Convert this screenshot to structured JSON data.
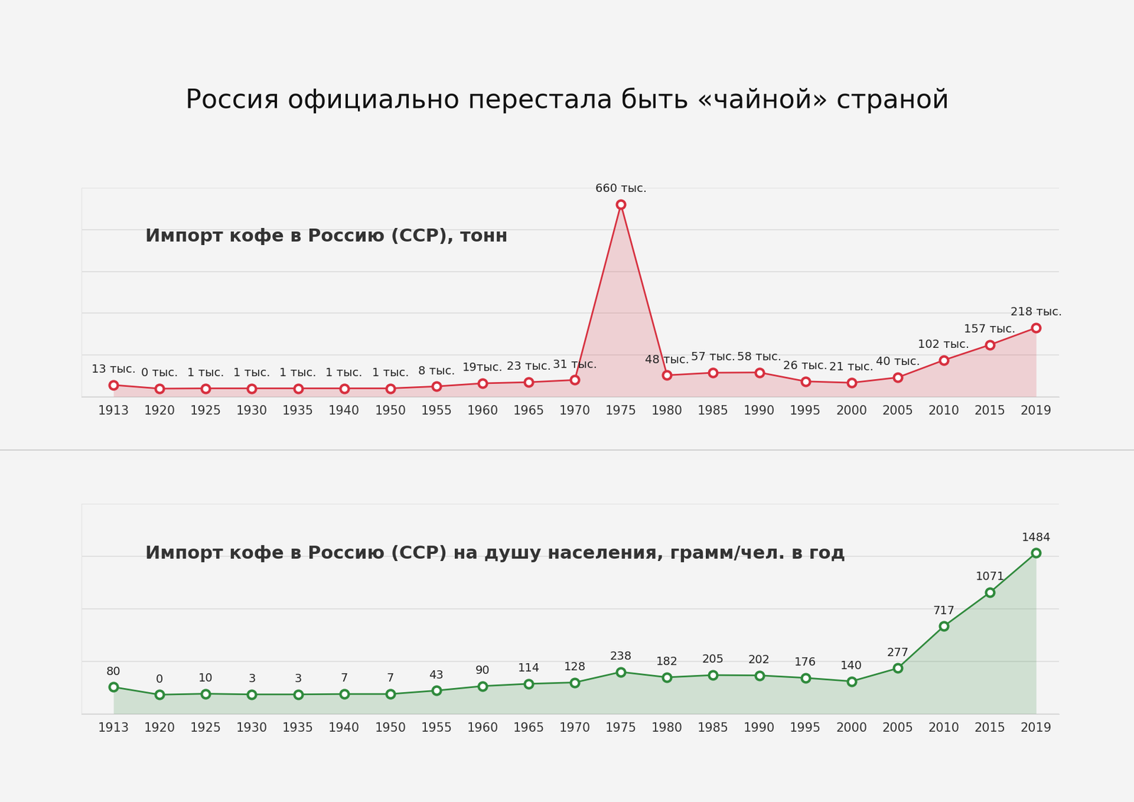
{
  "title": "Россия официально перестала быть «чайной» страной",
  "chart_data": [
    {
      "type": "line",
      "title": "Импорт кофе в Россию (ССР), тонн",
      "categories": [
        "1913",
        "1920",
        "1925",
        "1930",
        "1935",
        "1940",
        "1950",
        "1955",
        "1960",
        "1965",
        "1970",
        "1975",
        "1980",
        "1985",
        "1990",
        "1995",
        "2000",
        "2005",
        "2010",
        "2015",
        "2019"
      ],
      "values": [
        13000,
        0,
        1000,
        1000,
        1000,
        1000,
        1000,
        8000,
        19000,
        23000,
        31000,
        660000,
        48000,
        57000,
        58000,
        26000,
        21000,
        40000,
        102000,
        157000,
        218000
      ],
      "value_labels": [
        "13 тыс.",
        "0 тыс.",
        "1 тыс.",
        "1 тыс.",
        "1 тыс.",
        "1 тыс.",
        "1 тыс.",
        "8 тыс.",
        "19тыс.",
        "23 тыс.",
        "31 тыс.",
        "660 тыс.",
        "48 тыс.",
        "57 тыс.",
        "58 тыс.",
        "26 тыс.",
        "21 тыс.",
        "40 тыс.",
        "102 тыс.",
        "157 тыс.",
        "218 тыс."
      ],
      "color": "#d7303f",
      "marker": "o",
      "ylim": [
        -30000,
        720000
      ],
      "yticks": [
        -30000,
        120000,
        270000,
        420000,
        570000,
        720000
      ],
      "grid": true,
      "data_labels": true,
      "tick_labels": "x"
    },
    {
      "type": "line",
      "title": "Импорт кофе в Россию (ССР) на душу населения, грамм/чел. в год",
      "categories": [
        "1913",
        "1920",
        "1925",
        "1930",
        "1935",
        "1940",
        "1950",
        "1955",
        "1960",
        "1965",
        "1970",
        "1975",
        "1980",
        "1985",
        "1990",
        "1995",
        "2000",
        "2005",
        "2010",
        "2015",
        "2019"
      ],
      "values": [
        80,
        0,
        10,
        3,
        3,
        7,
        7,
        43,
        90,
        114,
        128,
        238,
        182,
        205,
        202,
        176,
        140,
        277,
        717,
        1071,
        1484
      ],
      "color": "#2f8a3c",
      "marker": "o",
      "ylim": [
        -200,
        2000
      ],
      "yticks": [
        -200,
        350,
        900,
        1450,
        2000
      ],
      "grid": true,
      "data_labels": true,
      "tick_labels": "x"
    }
  ]
}
